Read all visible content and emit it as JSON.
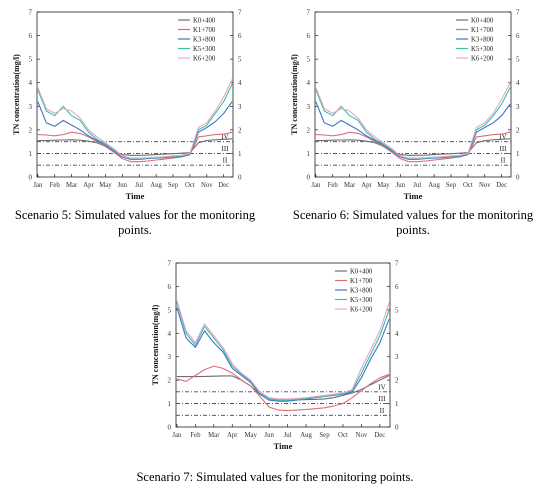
{
  "colors": {
    "axis": "#222222",
    "standard_line": "#3a3aa0",
    "series": [
      "#6e6e6e",
      "#d9707a",
      "#3f74c9",
      "#3fbfa8",
      "#e6a6c6"
    ]
  },
  "captions": [
    "Scenario 5: Simulated values for the monitoring points.",
    "Scenario 6: Simulated values for the monitoring points.",
    "Scenario 7: Simulated values for the monitoring points."
  ],
  "chart_data": [
    {
      "type": "line",
      "title": "",
      "xlabel": "Time",
      "ylabel": "TN concentration(mg/l)",
      "xticks": [
        "Jan",
        "Feb",
        "Mar",
        "Apr",
        "May",
        "Jun",
        "Jul",
        "Aug",
        "Sep",
        "Oct",
        "Nov",
        "Dec"
      ],
      "ylim": [
        0,
        7
      ],
      "yticks": [
        0,
        1,
        2,
        3,
        4,
        5,
        6,
        7
      ],
      "legend_position": "top-right",
      "standard_lines": [
        {
          "label": "IV",
          "value": 1.5
        },
        {
          "label": "III",
          "value": 1.0
        },
        {
          "label": "II",
          "value": 0.5
        }
      ],
      "x": [
        0,
        0.5,
        1,
        1.5,
        2,
        2.5,
        3,
        3.5,
        4,
        4.5,
        5,
        5.5,
        6,
        6.5,
        7,
        7.5,
        8,
        8.5,
        9,
        9.5,
        10,
        10.5,
        11,
        11.5
      ],
      "series": [
        {
          "name": "K0+400",
          "values": [
            1.55,
            1.55,
            1.56,
            1.57,
            1.58,
            1.56,
            1.52,
            1.45,
            1.3,
            1.1,
            0.95,
            0.92,
            0.92,
            0.93,
            0.95,
            0.97,
            0.99,
            1.01,
            1.03,
            1.45,
            1.55,
            1.58,
            1.6,
            1.62
          ]
        },
        {
          "name": "K1+700",
          "values": [
            1.8,
            1.78,
            1.75,
            1.8,
            1.9,
            1.85,
            1.7,
            1.5,
            1.3,
            1.05,
            0.78,
            0.65,
            0.65,
            0.68,
            0.72,
            0.76,
            0.8,
            0.85,
            0.95,
            1.7,
            1.75,
            1.8,
            1.82,
            1.9
          ]
        },
        {
          "name": "K3+800",
          "values": [
            3.2,
            2.3,
            2.15,
            2.4,
            2.2,
            2.0,
            1.75,
            1.55,
            1.35,
            1.1,
            0.85,
            0.75,
            0.75,
            0.78,
            0.8,
            0.82,
            0.85,
            0.88,
            0.95,
            1.9,
            2.1,
            2.35,
            2.7,
            3.2
          ]
        },
        {
          "name": "K5+300",
          "values": [
            3.7,
            2.8,
            2.6,
            3.0,
            2.6,
            2.4,
            1.9,
            1.6,
            1.4,
            1.15,
            0.88,
            0.78,
            0.78,
            0.8,
            0.82,
            0.85,
            0.88,
            0.9,
            0.98,
            2.0,
            2.2,
            2.7,
            3.2,
            3.95
          ]
        },
        {
          "name": "K6+200",
          "values": [
            3.8,
            2.9,
            2.7,
            2.9,
            2.8,
            2.5,
            2.0,
            1.7,
            1.45,
            1.2,
            0.9,
            0.8,
            0.8,
            0.82,
            0.84,
            0.86,
            0.9,
            0.92,
            1.0,
            2.1,
            2.3,
            2.8,
            3.4,
            4.15
          ]
        }
      ]
    },
    {
      "type": "line",
      "title": "",
      "xlabel": "Time",
      "ylabel": "TN concentration(mg/l)",
      "xticks": [
        "Jan",
        "Feb",
        "Mar",
        "Apr",
        "May",
        "Jun",
        "Jul",
        "Aug",
        "Sep",
        "Oct",
        "Nov",
        "Dec"
      ],
      "ylim": [
        0,
        7
      ],
      "yticks": [
        0,
        1,
        2,
        3,
        4,
        5,
        6,
        7
      ],
      "legend_position": "top-right",
      "standard_lines": [
        {
          "label": "IV",
          "value": 1.5
        },
        {
          "label": "III",
          "value": 1.0
        },
        {
          "label": "II",
          "value": 0.5
        }
      ],
      "x": [
        0,
        0.5,
        1,
        1.5,
        2,
        2.5,
        3,
        3.5,
        4,
        4.5,
        5,
        5.5,
        6,
        6.5,
        7,
        7.5,
        8,
        8.5,
        9,
        9.5,
        10,
        10.5,
        11,
        11.5
      ],
      "series": [
        {
          "name": "K0+400",
          "values": [
            1.55,
            1.55,
            1.56,
            1.57,
            1.58,
            1.56,
            1.52,
            1.45,
            1.3,
            1.1,
            0.95,
            0.92,
            0.92,
            0.93,
            0.95,
            0.97,
            0.99,
            1.01,
            1.03,
            1.45,
            1.55,
            1.58,
            1.6,
            1.62
          ]
        },
        {
          "name": "K1+700",
          "values": [
            1.8,
            1.78,
            1.75,
            1.8,
            1.9,
            1.85,
            1.7,
            1.5,
            1.3,
            1.05,
            0.78,
            0.65,
            0.65,
            0.68,
            0.72,
            0.76,
            0.8,
            0.85,
            0.95,
            1.7,
            1.75,
            1.8,
            1.82,
            1.9
          ]
        },
        {
          "name": "K3+800",
          "values": [
            3.2,
            2.3,
            2.15,
            2.4,
            2.2,
            2.0,
            1.75,
            1.55,
            1.35,
            1.1,
            0.85,
            0.75,
            0.75,
            0.78,
            0.8,
            0.82,
            0.85,
            0.88,
            0.95,
            1.9,
            2.1,
            2.3,
            2.6,
            3.1
          ]
        },
        {
          "name": "K5+300",
          "values": [
            3.7,
            2.8,
            2.6,
            3.0,
            2.6,
            2.4,
            1.9,
            1.6,
            1.4,
            1.15,
            0.88,
            0.78,
            0.78,
            0.8,
            0.82,
            0.85,
            0.88,
            0.9,
            0.98,
            2.0,
            2.2,
            2.6,
            3.1,
            3.8
          ]
        },
        {
          "name": "K6+200",
          "values": [
            3.8,
            2.9,
            2.7,
            2.9,
            2.8,
            2.5,
            2.0,
            1.7,
            1.45,
            1.2,
            0.9,
            0.8,
            0.8,
            0.82,
            0.84,
            0.86,
            0.9,
            0.92,
            1.0,
            2.1,
            2.3,
            2.7,
            3.3,
            4.0
          ]
        }
      ]
    },
    {
      "type": "line",
      "title": "",
      "xlabel": "Time",
      "ylabel": "TN concentration(mg/l)",
      "xticks": [
        "Jan",
        "Feb",
        "Mar",
        "Apr",
        "May",
        "Jun",
        "Jul",
        "Aug",
        "Sep",
        "Oct",
        "Nov",
        "Dec"
      ],
      "ylim": [
        0,
        7
      ],
      "yticks": [
        0,
        1,
        2,
        3,
        4,
        5,
        6,
        7
      ],
      "legend_position": "top-right",
      "standard_lines": [
        {
          "label": "IV",
          "value": 1.5
        },
        {
          "label": "III",
          "value": 1.0
        },
        {
          "label": "II",
          "value": 0.5
        }
      ],
      "x": [
        0,
        0.5,
        1,
        1.5,
        2,
        2.5,
        3,
        3.5,
        4,
        4.5,
        5,
        5.5,
        6,
        6.5,
        7,
        7.5,
        8,
        8.5,
        9,
        9.5,
        10,
        10.5,
        11,
        11.5
      ],
      "series": [
        {
          "name": "K0+400",
          "values": [
            2.15,
            2.15,
            2.15,
            2.16,
            2.17,
            2.18,
            2.18,
            2.0,
            1.75,
            1.4,
            1.2,
            1.15,
            1.15,
            1.16,
            1.17,
            1.18,
            1.2,
            1.25,
            1.35,
            1.45,
            1.6,
            1.8,
            2.0,
            2.2
          ]
        },
        {
          "name": "K1+700",
          "values": [
            2.05,
            1.95,
            2.2,
            2.45,
            2.6,
            2.5,
            2.3,
            2.0,
            1.75,
            1.3,
            0.85,
            0.72,
            0.7,
            0.72,
            0.75,
            0.78,
            0.82,
            0.9,
            1.0,
            1.25,
            1.55,
            1.85,
            2.1,
            2.25
          ]
        },
        {
          "name": "K3+800",
          "values": [
            5.1,
            3.8,
            3.4,
            4.1,
            3.6,
            3.2,
            2.5,
            2.2,
            1.9,
            1.4,
            1.15,
            1.1,
            1.1,
            1.15,
            1.2,
            1.25,
            1.3,
            1.35,
            1.4,
            1.5,
            2.1,
            2.9,
            3.6,
            4.6
          ]
        },
        {
          "name": "K5+300",
          "values": [
            5.3,
            4.0,
            3.5,
            4.3,
            3.8,
            3.3,
            2.6,
            2.25,
            1.95,
            1.45,
            1.2,
            1.15,
            1.15,
            1.18,
            1.22,
            1.27,
            1.32,
            1.36,
            1.42,
            1.55,
            2.3,
            3.1,
            3.9,
            5.0
          ]
        },
        {
          "name": "K6+200",
          "values": [
            5.4,
            4.1,
            3.6,
            4.4,
            3.9,
            3.4,
            2.7,
            2.3,
            2.0,
            1.5,
            1.25,
            1.2,
            1.2,
            1.22,
            1.25,
            1.3,
            1.35,
            1.4,
            1.45,
            1.6,
            2.5,
            3.3,
            4.1,
            5.3
          ]
        }
      ]
    }
  ]
}
